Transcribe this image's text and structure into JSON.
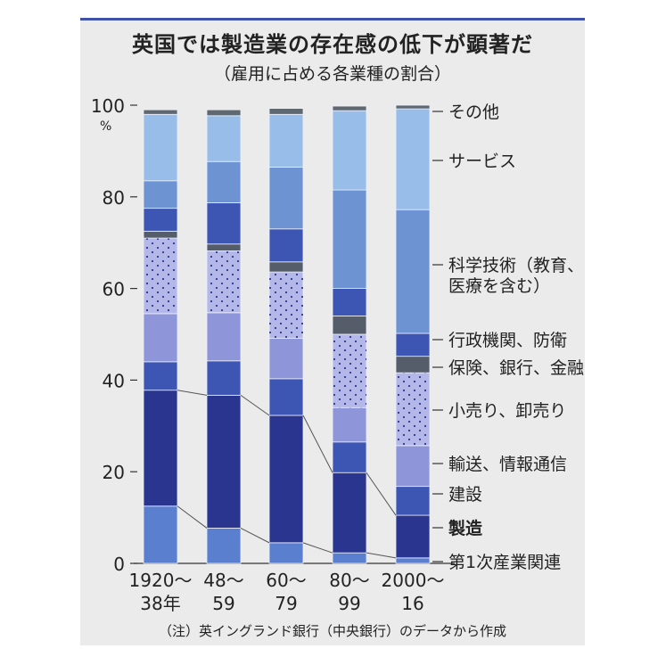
{
  "title": "英国では製造業の存在感の低下が顕著だ",
  "subtitle": "（雇用に占める各業種の割合）",
  "footnote": "（注）英イングランド銀行（中央銀行）のデータから作成",
  "unit": "%",
  "colors": {
    "第1次産業関連": "#5a7fcf",
    "製造": "#2a3590",
    "建設": "#3d56b4",
    "輸送、情報通信": "#8e95d8",
    "小売り、卸売り": "#b3b8e8",
    "保険、銀行、金融": "#555d6a",
    "行政機関、防衛": "#3d56b4",
    "科学技術（教育、医療を含む）": "#6e93d3",
    "サービス": "#97bde8",
    "その他": "#5f6870"
  },
  "chart_data": {
    "type": "bar",
    "stacked": true,
    "title": "英国では製造業の存在感の低下が顕著だ",
    "subtitle": "（雇用に占める各業種の割合）",
    "ylabel": "%",
    "ylim": [
      0,
      100
    ],
    "yticks": [
      0,
      20,
      40,
      60,
      80,
      100
    ],
    "categories": [
      {
        "line1": "1920〜",
        "line2": "38年"
      },
      {
        "line1": "48〜",
        "line2": "59"
      },
      {
        "line1": "60〜",
        "line2": "79"
      },
      {
        "line1": "80〜",
        "line2": "99"
      },
      {
        "line1": "2000〜",
        "line2": "16"
      }
    ],
    "series": [
      {
        "name": "第1次産業関連",
        "values": [
          12.5,
          7.7,
          4.5,
          2.3,
          1.2
        ]
      },
      {
        "name": "製造",
        "values": [
          25.3,
          29.0,
          27.8,
          17.5,
          9.3
        ]
      },
      {
        "name": "建設",
        "values": [
          6.2,
          7.5,
          8.0,
          6.7,
          6.3
        ]
      },
      {
        "name": "輸送、情報通信",
        "values": [
          10.5,
          10.5,
          8.8,
          7.5,
          8.9
        ]
      },
      {
        "name": "小売り、卸売り",
        "values": [
          16.5,
          13.5,
          14.5,
          16.0,
          15.9
        ]
      },
      {
        "name": "保険、銀行、金融",
        "values": [
          1.5,
          1.5,
          2.2,
          4.0,
          3.6
        ]
      },
      {
        "name": "行政機関、防衛",
        "values": [
          5.0,
          9.0,
          7.2,
          6.0,
          5.0
        ]
      },
      {
        "name": "科学技術（教育、医療を含む）",
        "values": [
          6.0,
          9.0,
          13.5,
          21.5,
          27.0
        ]
      },
      {
        "name": "サービス",
        "values": [
          14.5,
          10.0,
          11.5,
          17.3,
          22.0
        ]
      },
      {
        "name": "その他",
        "values": [
          1.0,
          1.3,
          1.3,
          1.0,
          0.8
        ]
      }
    ],
    "legend": [
      {
        "series": "その他",
        "label": "その他",
        "bold": false
      },
      {
        "series": "サービス",
        "label": "サービス",
        "bold": false
      },
      {
        "series": "科学技術（教育、医療を含む）",
        "label": "科学技術（教育、",
        "label2": "医療を含む）",
        "bold": false
      },
      {
        "series": "行政機関、防衛",
        "label": "行政機関、防衛",
        "bold": false
      },
      {
        "series": "保険、銀行、金融",
        "label": "保険、銀行、金融",
        "bold": false
      },
      {
        "series": "小売り、卸売り",
        "label": "小売り、卸売り",
        "bold": false
      },
      {
        "series": "輸送、情報通信",
        "label": "輸送、情報通信",
        "bold": false
      },
      {
        "series": "建設",
        "label": "建設",
        "bold": false
      },
      {
        "series": "製造",
        "label": "製造",
        "bold": true
      },
      {
        "series": "第1次産業関連",
        "label": "第1次産業関連",
        "bold": false
      }
    ],
    "dotted_series": "小売り、卸売り",
    "connector_series": "製造",
    "legend_position": "right"
  }
}
